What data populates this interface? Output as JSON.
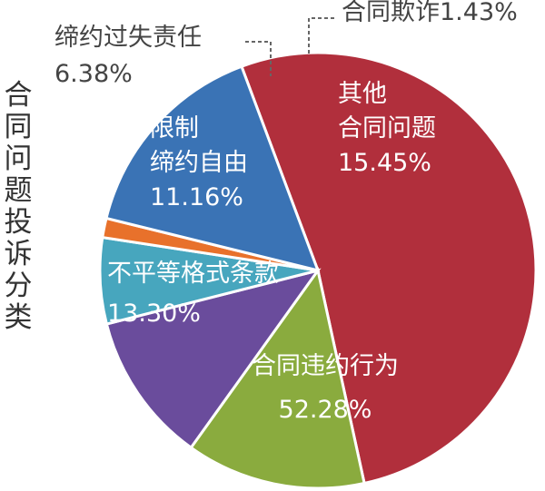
{
  "chart_data": {
    "type": "pie",
    "title": "合同问题投诉分类",
    "colors": {
      "合同违约行为": "#b12f3c",
      "不平等格式条款": "#8aab3e",
      "限制缔约自由": "#6a4c9c",
      "缔约过失责任": "#47a6be",
      "合同欺诈": "#e8712b",
      "其他合同问题": "#3a73b5"
    },
    "slices": [
      {
        "name": "合同违约行为",
        "value": 52.28,
        "label_lines": [
          "合同违约行为"
        ],
        "pct": "52.28%",
        "label_color": "#ffffff",
        "label_pos": "inside"
      },
      {
        "name": "不平等格式条款",
        "value": 13.3,
        "label_lines": [
          "不平等格式条款"
        ],
        "pct": "13.30%",
        "label_color": "#ffffff",
        "label_pos": "inside"
      },
      {
        "name": "限制缔约自由",
        "value": 11.16,
        "label_lines": [
          "限制",
          "缔约自由"
        ],
        "pct": "11.16%",
        "label_color": "#ffffff",
        "label_pos": "inside"
      },
      {
        "name": "缔约过失责任",
        "value": 6.38,
        "label_lines": [
          "缔约过失责任"
        ],
        "pct": "6.38%",
        "label_color": "#444444",
        "label_pos": "outside"
      },
      {
        "name": "合同欺诈",
        "value": 1.43,
        "label_lines": [
          "合同欺诈"
        ],
        "pct": "1.43%",
        "label_color": "#444444",
        "label_pos": "outside"
      },
      {
        "name": "其他合同问题",
        "value": 15.45,
        "label_lines": [
          "其他",
          "合同问题"
        ],
        "pct": "15.45%",
        "label_color": "#ffffff",
        "label_pos": "inside"
      }
    ],
    "legend": "none"
  }
}
